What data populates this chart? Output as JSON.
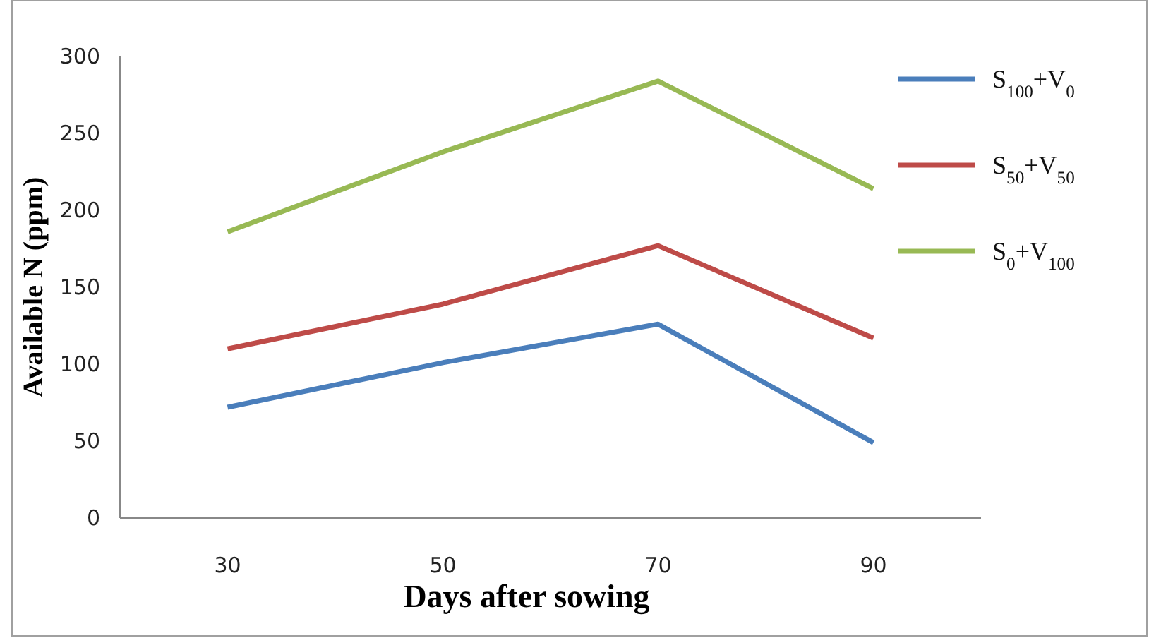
{
  "chart_data": {
    "type": "line",
    "xlabel": "Days after sowing",
    "ylabel": "Available N (ppm)",
    "categories": [
      "30",
      "50",
      "70",
      "90"
    ],
    "ylim": [
      0,
      300
    ],
    "yticks": [
      0,
      50,
      100,
      150,
      200,
      250,
      300
    ],
    "grid": false,
    "legend": "right",
    "marker": "none",
    "line_style": "solid",
    "series": [
      {
        "name": "S$_{100}$+V$_{0}$",
        "color": "#4a7ebb",
        "values": [
          72,
          101,
          126,
          49
        ]
      },
      {
        "name": "S$_{50}$+V$_{50}$",
        "color": "#be4b48",
        "values": [
          110,
          139,
          177,
          117
        ]
      },
      {
        "name": "S$_{0}$+V$_{100}$",
        "color": "#98b954",
        "values": [
          186,
          238,
          284,
          214
        ]
      }
    ]
  }
}
